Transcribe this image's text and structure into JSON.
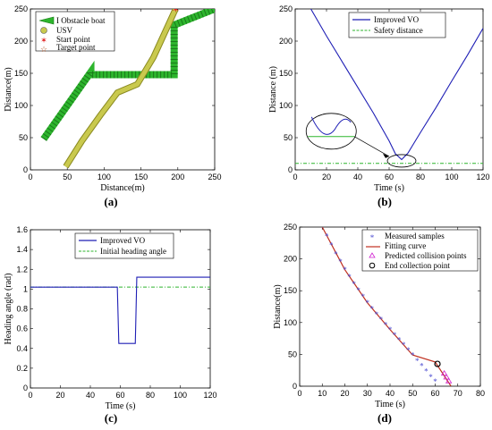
{
  "chart_data": [
    {
      "type": "line",
      "panel": "a",
      "caption": "(a)",
      "xlabel": "Distance(m)",
      "ylabel": "Distance(m)",
      "xlim": [
        0,
        250
      ],
      "ylim": [
        0,
        250
      ],
      "xticks": [
        "0",
        "50",
        "100",
        "150",
        "200",
        "250"
      ],
      "yticks": [
        "0",
        "50",
        "100",
        "150",
        "200",
        "250"
      ],
      "legend_position": "top-left",
      "grid": false,
      "series": [
        {
          "name": "Obstacle boat",
          "color": "#2db52d",
          "x": [
            18,
            82,
            82,
            195,
            195,
            250
          ],
          "y": [
            48,
            152,
            148,
            148,
            225,
            250
          ]
        },
        {
          "name": "USV",
          "color": "#c9c94e",
          "x": [
            48,
            70,
            95,
            118,
            145,
            167,
            197
          ],
          "y": [
            5,
            45,
            85,
            120,
            133,
            175,
            250
          ]
        }
      ],
      "start_point": {
        "name": "Start point",
        "x": 197,
        "y": 250,
        "color": "#e02020"
      },
      "target_point": {
        "name": "Target point",
        "x": 197,
        "y": 250,
        "color": "#e02020"
      }
    },
    {
      "type": "line",
      "panel": "b",
      "caption": "(b)",
      "xlabel": "Time (s)",
      "ylabel": "Distance (m)",
      "xlim": [
        0,
        120
      ],
      "ylim": [
        0,
        250
      ],
      "xticks": [
        "0",
        "20",
        "40",
        "60",
        "80",
        "100",
        "120"
      ],
      "yticks": [
        "0",
        "50",
        "100",
        "150",
        "200",
        "250"
      ],
      "legend_position": "top-center",
      "grid": false,
      "series": [
        {
          "name": "Improved VO",
          "color": "#1f1fb5",
          "x": [
            0,
            10,
            20,
            30,
            40,
            50,
            60,
            64,
            68,
            72,
            76,
            80,
            90,
            100,
            110,
            120
          ],
          "y": [
            290,
            250,
            208,
            168,
            128,
            88,
            45,
            25,
            16,
            26,
            42,
            58,
            97,
            138,
            178,
            220
          ]
        },
        {
          "name": "Safety distance",
          "color": "#2db52d",
          "dashed": true,
          "x": [
            0,
            120
          ],
          "y": [
            10,
            10
          ]
        }
      ],
      "annotation": {
        "zoom_center_x": 23,
        "zoom_center_y": 60,
        "target_x": 68,
        "target_y": 14
      }
    },
    {
      "type": "line",
      "panel": "c",
      "caption": "(c)",
      "xlabel": "Time  (s)",
      "ylabel": "Heading angle  (rad)",
      "xlim": [
        0,
        120
      ],
      "ylim": [
        0,
        1.6
      ],
      "xticks": [
        "0",
        "20",
        "40",
        "60",
        "80",
        "100",
        "120"
      ],
      "yticks": [
        "0",
        "0.2",
        "0.4",
        "0.6",
        "0.8",
        "1",
        "1.2",
        "1.4",
        "1.6"
      ],
      "legend_position": "top-center",
      "grid": false,
      "series": [
        {
          "name": "Improved VO",
          "color": "#1f1fb5",
          "x": [
            0,
            58,
            59,
            70,
            71,
            120
          ],
          "y": [
            1.02,
            1.02,
            0.45,
            0.45,
            1.12,
            1.12
          ]
        },
        {
          "name": "Initial heading angle",
          "color": "#2db52d",
          "dashed": true,
          "x": [
            0,
            120
          ],
          "y": [
            1.02,
            1.02
          ]
        }
      ]
    },
    {
      "type": "scatter",
      "panel": "d",
      "caption": "(d)",
      "xlabel": "Time (s)",
      "ylabel": "Distance(m)",
      "xlim": [
        0,
        80
      ],
      "ylim": [
        0,
        250
      ],
      "xticks": [
        "0",
        "10",
        "20",
        "30",
        "40",
        "50",
        "60",
        "70",
        "80"
      ],
      "yticks": [
        "0",
        "50",
        "100",
        "150",
        "200",
        "250"
      ],
      "legend_position": "top-right",
      "grid": false,
      "series": [
        {
          "name": "Measured samples",
          "color": "#4a4ad0",
          "marker": "asterisk",
          "x": [
            10,
            12,
            14,
            16,
            18,
            20,
            22,
            24,
            26,
            28,
            30,
            32,
            34,
            36,
            38,
            40,
            42,
            44,
            46,
            48,
            50,
            52,
            54,
            56,
            58,
            60,
            61
          ],
          "y": [
            250,
            236,
            222,
            208,
            196,
            183,
            172,
            161,
            151,
            141,
            131,
            122,
            113,
            105,
            97,
            89,
            81,
            73,
            65,
            57,
            49,
            40,
            32,
            24,
            15,
            8,
            35
          ]
        },
        {
          "name": "Fitting curve",
          "color": "#c03020",
          "x": [
            10,
            20,
            30,
            40,
            50,
            60,
            67
          ],
          "y": [
            250,
            183,
            131,
            89,
            49,
            38,
            0
          ]
        },
        {
          "name": "Predicted collision points",
          "color": "#d020d0",
          "marker": "triangle",
          "x": [
            64,
            65,
            66
          ],
          "y": [
            20,
            14,
            8
          ]
        },
        {
          "name": "End collection point",
          "color": "#000000",
          "marker": "circle",
          "x": [
            61
          ],
          "y": [
            35
          ]
        }
      ]
    }
  ]
}
